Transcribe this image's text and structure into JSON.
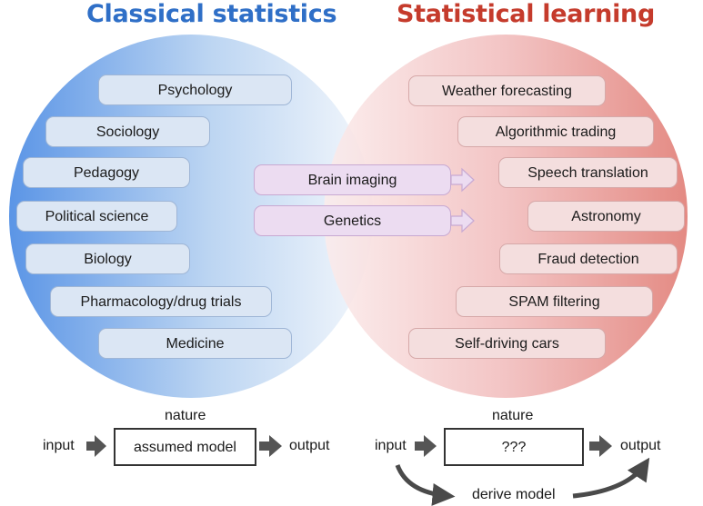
{
  "titles": {
    "left": "Classical statistics",
    "right": "Statistical learning"
  },
  "classical_fields": [
    "Psychology",
    "Sociology",
    "Pedagogy",
    "Political science",
    "Biology",
    "Pharmacology/drug trials",
    "Medicine"
  ],
  "shared_fields": [
    "Brain imaging",
    "Genetics"
  ],
  "learning_fields": [
    "Weather forecasting",
    "Algorithmic trading",
    "Speech translation",
    "Astronomy",
    "Fraud detection",
    "SPAM filtering",
    "Self-driving cars"
  ],
  "classical_flow": {
    "input": "input",
    "nature": "nature",
    "model": "assumed model",
    "output": "output"
  },
  "learning_flow": {
    "input": "input",
    "nature": "nature",
    "model": "???",
    "output": "output",
    "derive": "derive model"
  },
  "colors": {
    "classical_accent": "#2f6fc7",
    "learning_accent": "#c53b2c",
    "shared_pill": "#ecdcf1"
  },
  "icons": {
    "flow_arrow": "right-arrow-icon",
    "derive_arrow": "curved-arrow-icon"
  }
}
